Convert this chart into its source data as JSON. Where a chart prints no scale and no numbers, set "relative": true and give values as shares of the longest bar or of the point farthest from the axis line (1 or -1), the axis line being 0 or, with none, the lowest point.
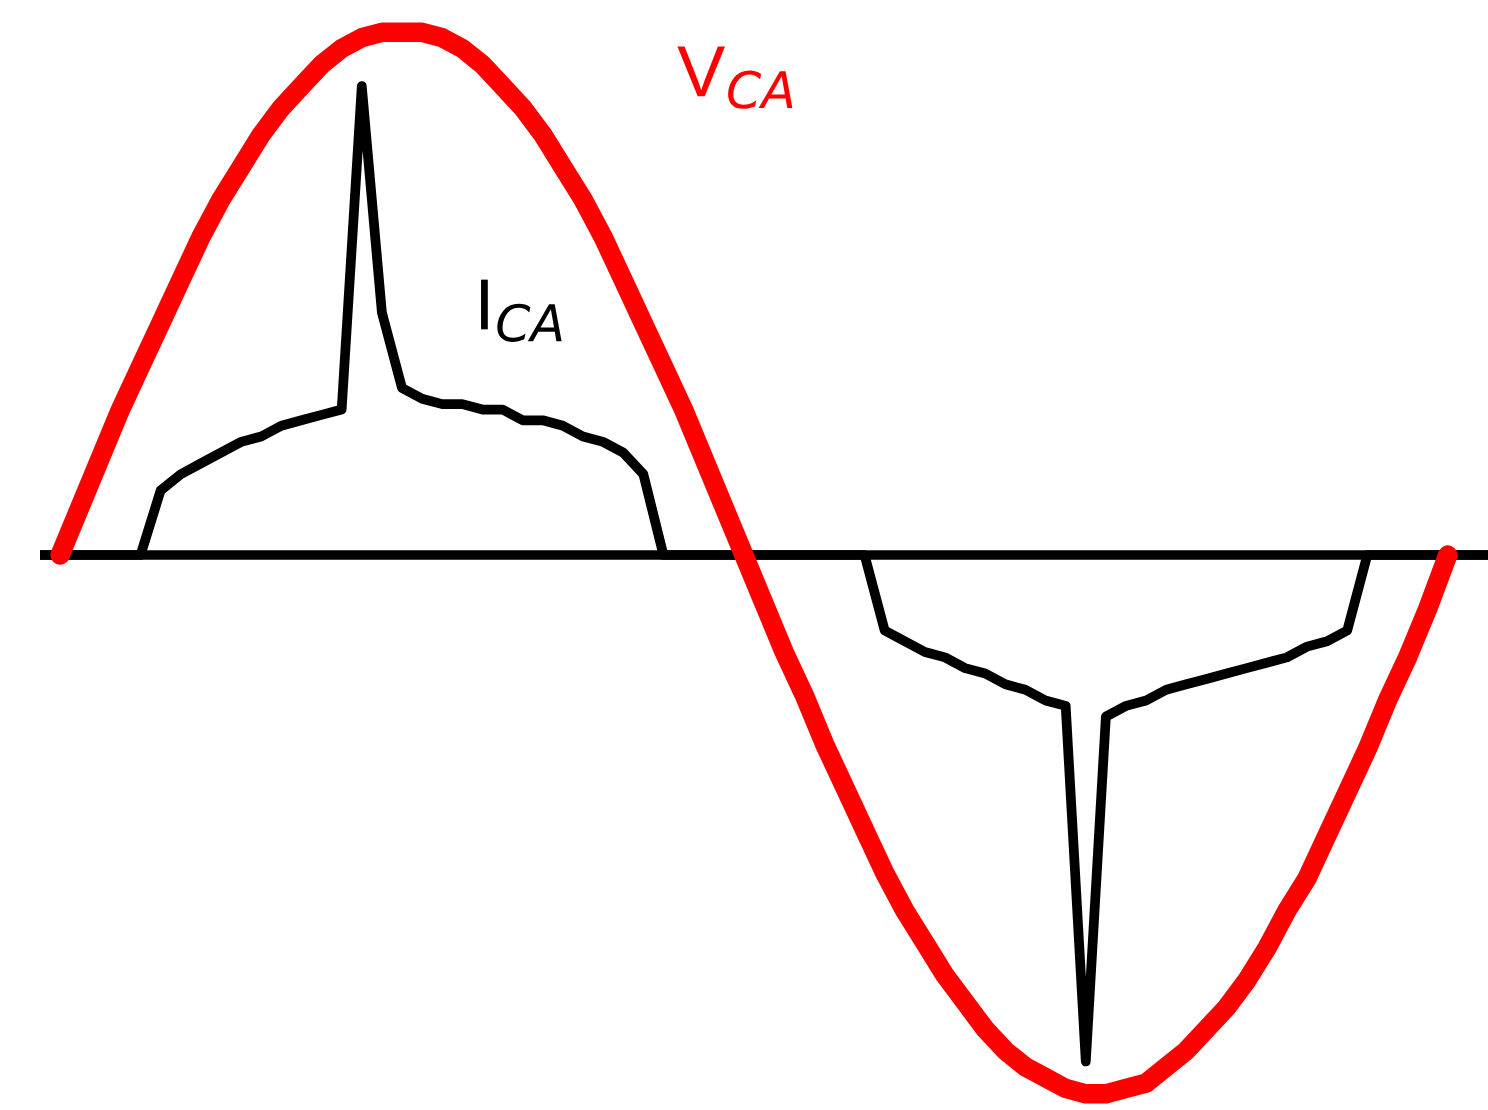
{
  "chart_data": {
    "type": "line",
    "relative": true,
    "categories": [
      null,
      null,
      null,
      null,
      null,
      null,
      null,
      null,
      null,
      null,
      null,
      null,
      null,
      null,
      null,
      null,
      null,
      null,
      null,
      null,
      null,
      null,
      null,
      null,
      null,
      null,
      null,
      null,
      null,
      null,
      null,
      null,
      null,
      null,
      null,
      null,
      null,
      null,
      null,
      null,
      null,
      null,
      null,
      null,
      null,
      null,
      null,
      null,
      null,
      null,
      null,
      null,
      null,
      null,
      null,
      null,
      null,
      null,
      null,
      null,
      null,
      null,
      null,
      null,
      null,
      null,
      null,
      null,
      null,
      null,
      null,
      null,
      null
    ],
    "series": [
      {
        "name": "V$_{CA}$",
        "color": "#ff0000",
        "values": [
          null,
          0,
          0.09,
          0.18,
          0.27,
          0.35,
          0.43,
          0.51,
          0.59,
          0.66,
          0.72,
          0.78,
          0.83,
          0.87,
          0.91,
          0.94,
          0.96,
          0.97,
          0.97,
          0.97,
          0.96,
          0.94,
          0.91,
          0.87,
          0.83,
          0.78,
          0.72,
          0.66,
          0.59,
          0.51,
          0.43,
          0.35,
          0.27,
          0.18,
          0.09,
          0,
          -0.09,
          -0.18,
          -0.26,
          -0.35,
          -0.43,
          -0.51,
          -0.59,
          -0.66,
          -0.72,
          -0.78,
          -0.83,
          -0.88,
          -0.92,
          -0.95,
          -0.97,
          -0.99,
          -1.0,
          -1.0,
          -0.99,
          -0.98,
          -0.95,
          -0.92,
          -0.88,
          -0.84,
          -0.79,
          -0.73,
          -0.66,
          -0.6,
          -0.52,
          -0.44,
          -0.36,
          -0.27,
          -0.19,
          -0.1,
          0,
          null,
          null
        ]
      },
      {
        "name": "I$_{CA}$",
        "color": "#000000",
        "values": [
          0,
          0,
          0,
          0,
          0,
          0,
          0.12,
          0.15,
          0.17,
          0.19,
          0.21,
          0.22,
          0.24,
          0.25,
          0.26,
          0.27,
          0.87,
          0.45,
          0.31,
          0.29,
          0.28,
          0.28,
          0.27,
          0.27,
          0.25,
          0.25,
          0.24,
          0.22,
          0.21,
          0.19,
          0.15,
          0,
          0,
          0,
          0,
          0,
          0,
          0,
          0,
          0,
          0,
          0,
          -0.14,
          -0.16,
          -0.18,
          -0.19,
          -0.21,
          -0.22,
          -0.24,
          -0.25,
          -0.27,
          -0.28,
          -0.94,
          -0.3,
          -0.28,
          -0.27,
          -0.25,
          -0.24,
          -0.23,
          -0.22,
          -0.21,
          -0.2,
          -0.19,
          -0.17,
          -0.16,
          -0.14,
          0,
          0,
          0,
          0,
          0,
          0,
          0
        ]
      }
    ],
    "legend": false,
    "grid": false
  }
}
